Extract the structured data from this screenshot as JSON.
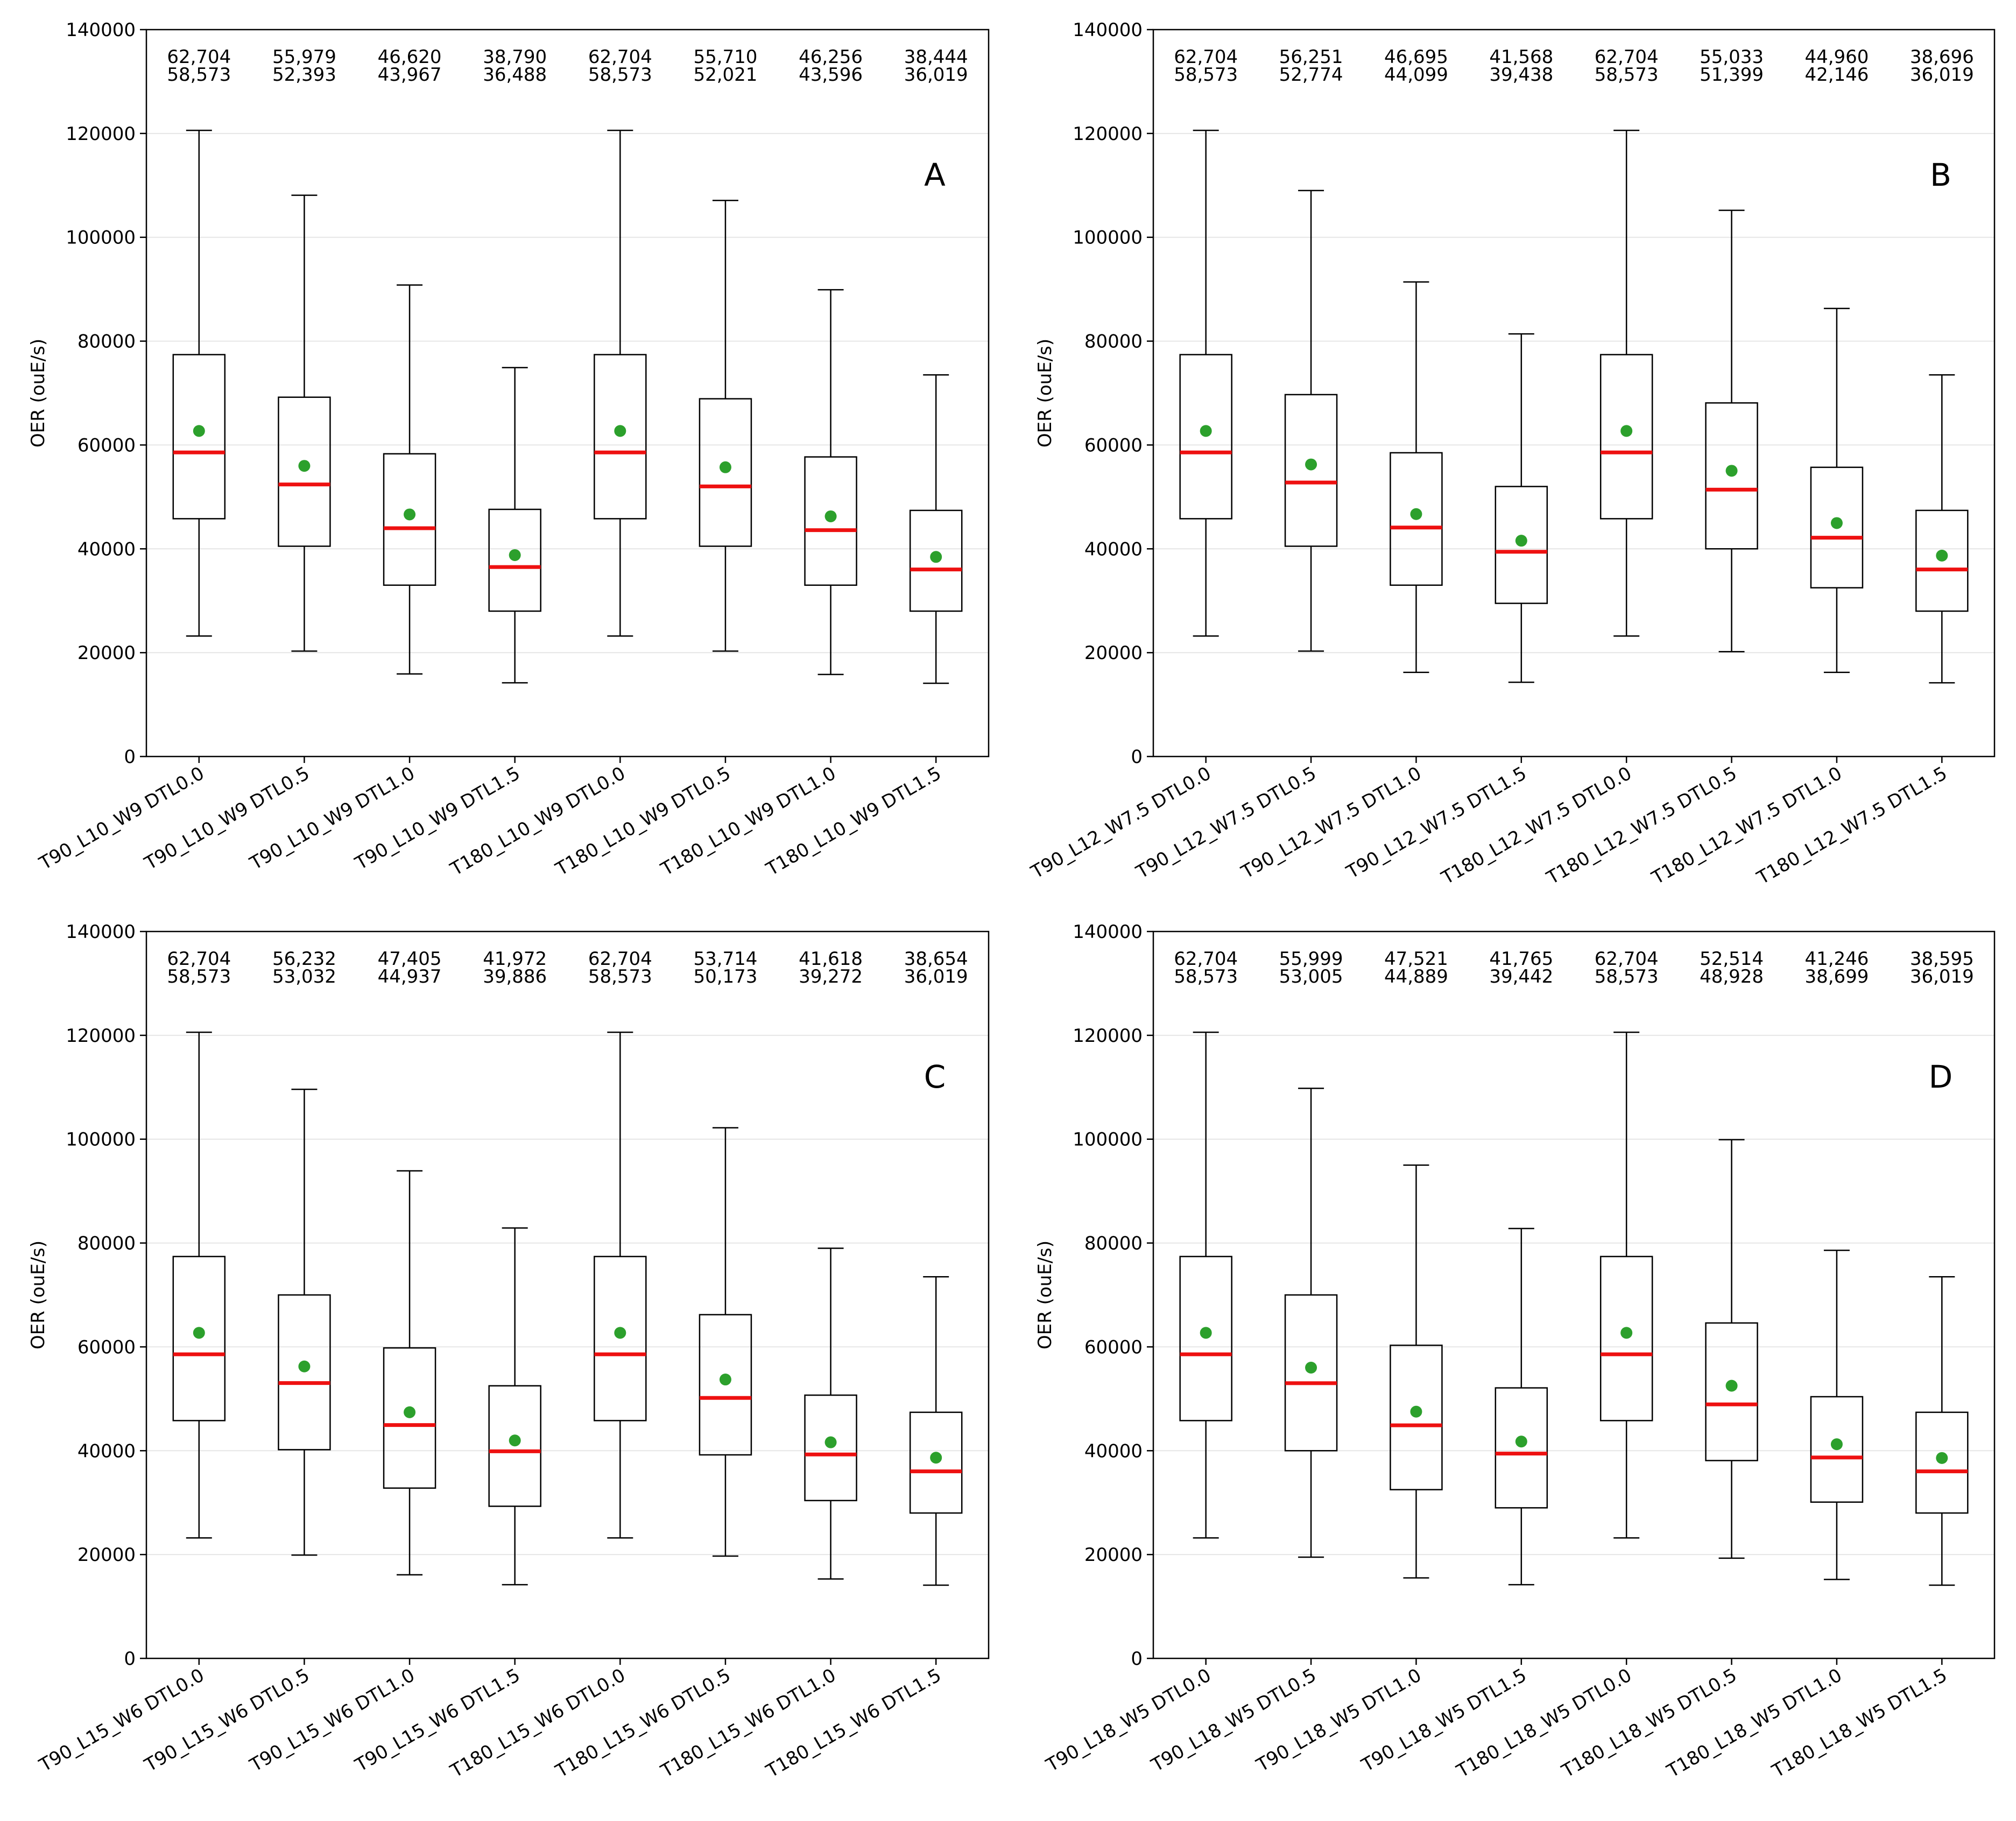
{
  "figure": {
    "ylabel": "OER (ouE/s)"
  },
  "colors": {
    "box": "#000000",
    "median": "#ee1111",
    "mean": "#2ca02c",
    "grid": "#e6e6e6"
  },
  "chart_data": [
    {
      "type": "box",
      "panel_label": "A",
      "ylabel": "OER (ouE/s)",
      "ylim": [
        0,
        140000
      ],
      "yticks": [
        "0",
        "20000",
        "40000",
        "60000",
        "80000",
        "100000",
        "120000",
        "140000"
      ],
      "categories": [
        "T90_L10_W9 DTL0.0",
        "T90_L10_W9 DTL0.5",
        "T90_L10_W9 DTL1.0",
        "T90_L10_W9 DTL1.5",
        "T180_L10_W9 DTL0.0",
        "T180_L10_W9 DTL0.5",
        "T180_L10_W9 DTL1.0",
        "T180_L10_W9 DTL1.5"
      ],
      "mean_labels": [
        "62,704",
        "55,979",
        "46,620",
        "38,790",
        "62,704",
        "55,710",
        "46,256",
        "38,444"
      ],
      "median_labels": [
        "58,573",
        "52,393",
        "43,967",
        "36,488",
        "58,573",
        "52,021",
        "43,596",
        "36,019"
      ],
      "boxes": [
        {
          "whislo": 23200,
          "q1": 45800,
          "med": 58573,
          "mean": 62704,
          "q3": 77400,
          "whishi": 120600
        },
        {
          "whislo": 20300,
          "q1": 40500,
          "med": 52393,
          "mean": 55979,
          "q3": 69200,
          "whishi": 108100
        },
        {
          "whislo": 15900,
          "q1": 33000,
          "med": 43967,
          "mean": 46620,
          "q3": 58300,
          "whishi": 90800
        },
        {
          "whislo": 14200,
          "q1": 28000,
          "med": 36488,
          "mean": 38790,
          "q3": 47600,
          "whishi": 74900
        },
        {
          "whislo": 23200,
          "q1": 45800,
          "med": 58573,
          "mean": 62704,
          "q3": 77400,
          "whishi": 120600
        },
        {
          "whislo": 20300,
          "q1": 40500,
          "med": 52021,
          "mean": 55710,
          "q3": 68900,
          "whishi": 107100
        },
        {
          "whislo": 15800,
          "q1": 33000,
          "med": 43596,
          "mean": 46256,
          "q3": 57700,
          "whishi": 89900
        },
        {
          "whislo": 14100,
          "q1": 28000,
          "med": 36019,
          "mean": 38444,
          "q3": 47400,
          "whishi": 73500
        }
      ]
    },
    {
      "type": "box",
      "panel_label": "B",
      "ylabel": "OER (ouE/s)",
      "ylim": [
        0,
        140000
      ],
      "yticks": [
        "0",
        "20000",
        "40000",
        "60000",
        "80000",
        "100000",
        "120000",
        "140000"
      ],
      "categories": [
        "T90_L12_W7.5 DTL0.0",
        "T90_L12_W7.5 DTL0.5",
        "T90_L12_W7.5 DTL1.0",
        "T90_L12_W7.5 DTL1.5",
        "T180_L12_W7.5 DTL0.0",
        "T180_L12_W7.5 DTL0.5",
        "T180_L12_W7.5 DTL1.0",
        "T180_L12_W7.5 DTL1.5"
      ],
      "mean_labels": [
        "62,704",
        "56,251",
        "46,695",
        "41,568",
        "62,704",
        "55,033",
        "44,960",
        "38,696"
      ],
      "median_labels": [
        "58,573",
        "52,774",
        "44,099",
        "39,438",
        "58,573",
        "51,399",
        "42,146",
        "36,019"
      ],
      "boxes": [
        {
          "whislo": 23200,
          "q1": 45800,
          "med": 58573,
          "mean": 62704,
          "q3": 77400,
          "whishi": 120600
        },
        {
          "whislo": 20300,
          "q1": 40500,
          "med": 52774,
          "mean": 56251,
          "q3": 69700,
          "whishi": 109000
        },
        {
          "whislo": 16200,
          "q1": 33000,
          "med": 44099,
          "mean": 46695,
          "q3": 58500,
          "whishi": 91400
        },
        {
          "whislo": 14300,
          "q1": 29500,
          "med": 39438,
          "mean": 41568,
          "q3": 52000,
          "whishi": 81400
        },
        {
          "whislo": 23200,
          "q1": 45800,
          "med": 58573,
          "mean": 62704,
          "q3": 77400,
          "whishi": 120600
        },
        {
          "whislo": 20200,
          "q1": 40000,
          "med": 51399,
          "mean": 55033,
          "q3": 68100,
          "whishi": 105200
        },
        {
          "whislo": 16200,
          "q1": 32500,
          "med": 42146,
          "mean": 44960,
          "q3": 55700,
          "whishi": 86300
        },
        {
          "whislo": 14200,
          "q1": 28000,
          "med": 36019,
          "mean": 38696,
          "q3": 47400,
          "whishi": 73500
        }
      ]
    },
    {
      "type": "box",
      "panel_label": "C",
      "ylabel": "OER (ouE/s)",
      "ylim": [
        0,
        140000
      ],
      "yticks": [
        "0",
        "20000",
        "40000",
        "60000",
        "80000",
        "100000",
        "120000",
        "140000"
      ],
      "categories": [
        "T90_L15_W6 DTL0.0",
        "T90_L15_W6 DTL0.5",
        "T90_L15_W6 DTL1.0",
        "T90_L15_W6 DTL1.5",
        "T180_L15_W6 DTL0.0",
        "T180_L15_W6 DTL0.5",
        "T180_L15_W6 DTL1.0",
        "T180_L15_W6 DTL1.5"
      ],
      "mean_labels": [
        "62,704",
        "56,232",
        "47,405",
        "41,972",
        "62,704",
        "53,714",
        "41,618",
        "38,654"
      ],
      "median_labels": [
        "58,573",
        "53,032",
        "44,937",
        "39,886",
        "58,573",
        "50,173",
        "39,272",
        "36,019"
      ],
      "boxes": [
        {
          "whislo": 23200,
          "q1": 45800,
          "med": 58573,
          "mean": 62704,
          "q3": 77400,
          "whishi": 120600
        },
        {
          "whislo": 19900,
          "q1": 40200,
          "med": 53032,
          "mean": 56232,
          "q3": 70000,
          "whishi": 109600
        },
        {
          "whislo": 16100,
          "q1": 32800,
          "med": 44937,
          "mean": 47405,
          "q3": 59800,
          "whishi": 93900
        },
        {
          "whislo": 14200,
          "q1": 29300,
          "med": 39886,
          "mean": 41972,
          "q3": 52500,
          "whishi": 82900
        },
        {
          "whislo": 23200,
          "q1": 45800,
          "med": 58573,
          "mean": 62704,
          "q3": 77400,
          "whishi": 120600
        },
        {
          "whislo": 19700,
          "q1": 39200,
          "med": 50173,
          "mean": 53714,
          "q3": 66200,
          "whishi": 102200
        },
        {
          "whislo": 15300,
          "q1": 30400,
          "med": 39272,
          "mean": 41618,
          "q3": 50700,
          "whishi": 79000
        },
        {
          "whislo": 14100,
          "q1": 28000,
          "med": 36019,
          "mean": 38654,
          "q3": 47400,
          "whishi": 73500
        }
      ]
    },
    {
      "type": "box",
      "panel_label": "D",
      "ylabel": "OER (ouE/s)",
      "ylim": [
        0,
        140000
      ],
      "yticks": [
        "0",
        "20000",
        "40000",
        "60000",
        "80000",
        "100000",
        "120000",
        "140000"
      ],
      "categories": [
        "T90_L18_W5 DTL0.0",
        "T90_L18_W5 DTL0.5",
        "T90_L18_W5 DTL1.0",
        "T90_L18_W5 DTL1.5",
        "T180_L18_W5 DTL0.0",
        "T180_L18_W5 DTL0.5",
        "T180_L18_W5 DTL1.0",
        "T180_L18_W5 DTL1.5"
      ],
      "mean_labels": [
        "62,704",
        "55,999",
        "47,521",
        "41,765",
        "62,704",
        "52,514",
        "41,246",
        "38,595"
      ],
      "median_labels": [
        "58,573",
        "53,005",
        "44,889",
        "39,442",
        "58,573",
        "48,928",
        "38,699",
        "36,019"
      ],
      "boxes": [
        {
          "whislo": 23200,
          "q1": 45800,
          "med": 58573,
          "mean": 62704,
          "q3": 77400,
          "whishi": 120600
        },
        {
          "whislo": 19500,
          "q1": 40000,
          "med": 53005,
          "mean": 55999,
          "q3": 70000,
          "whishi": 109800
        },
        {
          "whislo": 15500,
          "q1": 32500,
          "med": 44889,
          "mean": 47521,
          "q3": 60300,
          "whishi": 95000
        },
        {
          "whislo": 14200,
          "q1": 29000,
          "med": 39442,
          "mean": 41765,
          "q3": 52100,
          "whishi": 82800
        },
        {
          "whislo": 23200,
          "q1": 45800,
          "med": 58573,
          "mean": 62704,
          "q3": 77400,
          "whishi": 120600
        },
        {
          "whislo": 19300,
          "q1": 38100,
          "med": 48928,
          "mean": 52514,
          "q3": 64600,
          "whishi": 99900
        },
        {
          "whislo": 15200,
          "q1": 30100,
          "med": 38699,
          "mean": 41246,
          "q3": 50400,
          "whishi": 78600
        },
        {
          "whislo": 14100,
          "q1": 28000,
          "med": 36019,
          "mean": 38595,
          "q3": 47400,
          "whishi": 73500
        }
      ]
    }
  ]
}
